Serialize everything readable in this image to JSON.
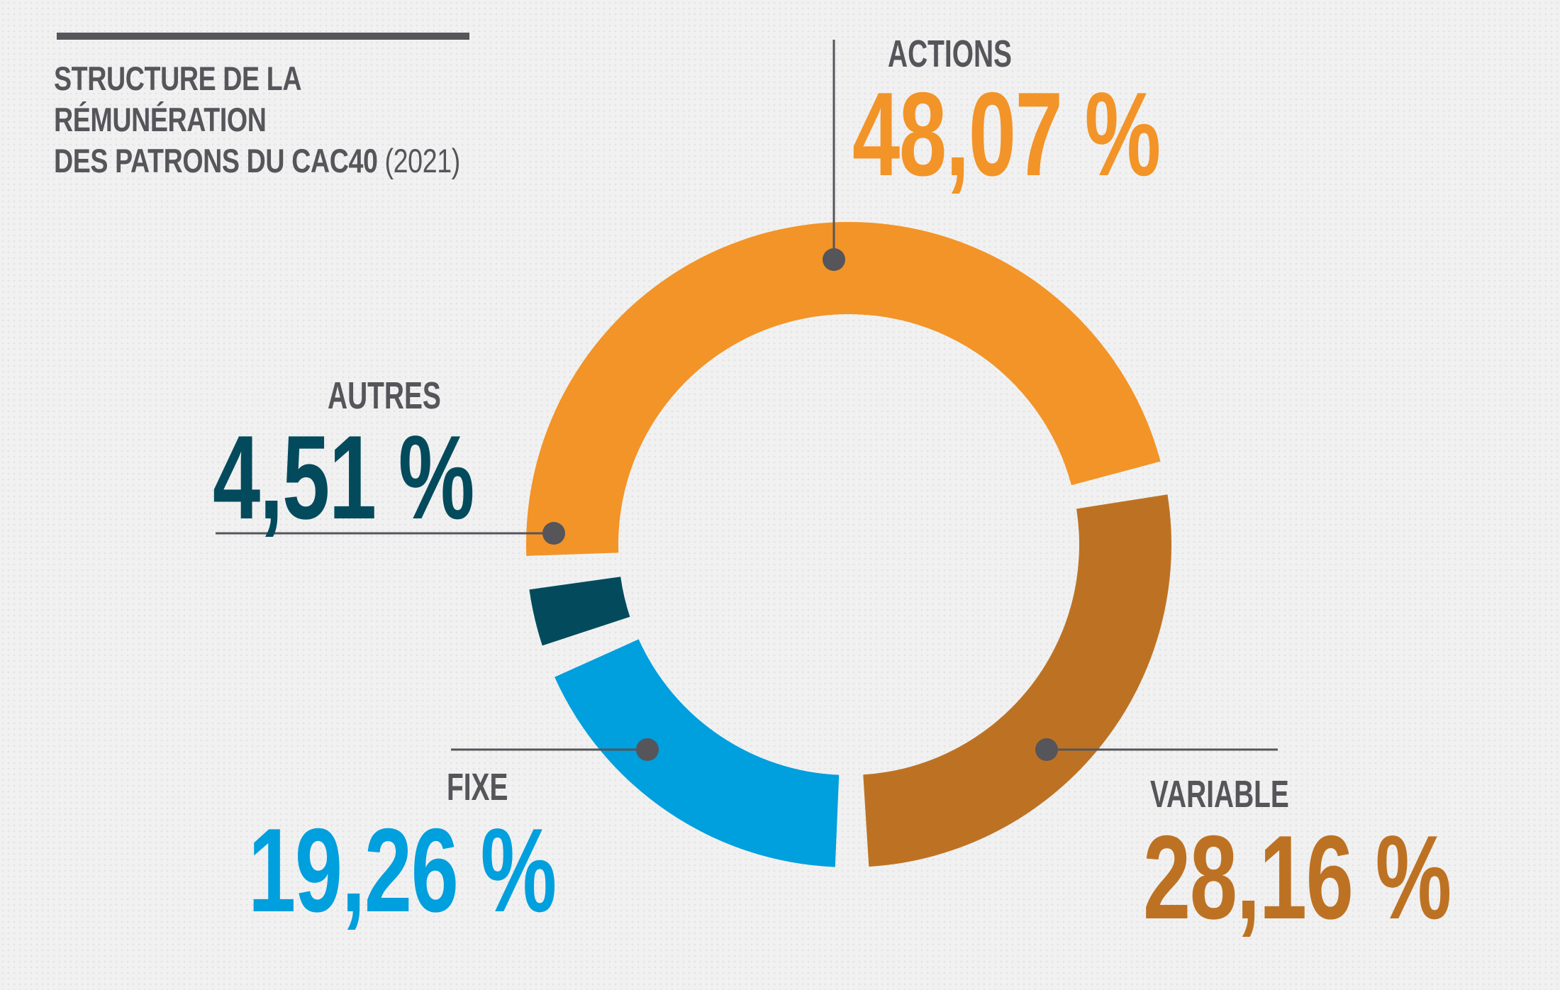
{
  "title": {
    "line1": "STRUCTURE DE LA RÉMUNÉRATION",
    "line2": "DES PATRONS DU CAC40",
    "year": "(2021)"
  },
  "chart_data": {
    "type": "pie",
    "style": "donut",
    "unit": "%",
    "slices": [
      {
        "name": "ACTIONS",
        "value": 48.07,
        "label": "48,07 %",
        "color": "#f29427",
        "key": "actions"
      },
      {
        "name": "VARIABLE",
        "value": 28.16,
        "label": "28,16 %",
        "color": "#bd7223",
        "key": "variable"
      },
      {
        "name": "FIXE",
        "value": 19.26,
        "label": "19,26 %",
        "color": "#009fdd",
        "key": "fixe"
      },
      {
        "name": "AUTRES",
        "value": 4.51,
        "label": "4,51 %",
        "color": "#034b5c",
        "key": "autres"
      }
    ],
    "leader_color": "#55555a"
  }
}
